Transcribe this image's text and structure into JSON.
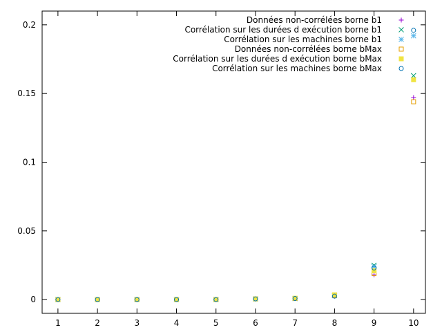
{
  "chart_data": {
    "type": "scatter",
    "title": "",
    "xlabel": "",
    "ylabel": "",
    "xlim": [
      0.6,
      10.3
    ],
    "ylim": [
      -0.01,
      0.21
    ],
    "grid": false,
    "legend_position": "top-right",
    "x_ticks": [
      {
        "value": 1,
        "label": "1"
      },
      {
        "value": 2,
        "label": "2"
      },
      {
        "value": 3,
        "label": "3"
      },
      {
        "value": 4,
        "label": "4"
      },
      {
        "value": 5,
        "label": "5"
      },
      {
        "value": 6,
        "label": "6"
      },
      {
        "value": 7,
        "label": "7"
      },
      {
        "value": 8,
        "label": "8"
      },
      {
        "value": 9,
        "label": "9"
      },
      {
        "value": 10,
        "label": "10"
      }
    ],
    "y_ticks": [
      {
        "value": 0,
        "label": "0"
      },
      {
        "value": 0.05,
        "label": "0.05"
      },
      {
        "value": 0.1,
        "label": "0.1"
      },
      {
        "value": 0.15,
        "label": "0.15"
      },
      {
        "value": 0.2,
        "label": "0.2"
      }
    ],
    "x": [
      1,
      2,
      3,
      4,
      5,
      6,
      7,
      8,
      9,
      10
    ],
    "series": [
      {
        "name": "Données non-corrélées borne b1",
        "marker": "plus",
        "color": "#9400d3",
        "values": [
          0,
          0,
          0,
          0,
          0,
          0.0005,
          0.0008,
          0.0025,
          0.018,
          0.147
        ]
      },
      {
        "name": "Corrélation sur les durées d exécution borne b1",
        "marker": "cross",
        "color": "#009e73",
        "values": [
          0,
          0,
          0,
          0,
          0,
          0.0005,
          0.0008,
          0.003,
          0.025,
          0.163
        ]
      },
      {
        "name": "Corrélation sur les machines borne b1",
        "marker": "star",
        "color": "#56b4e9",
        "values": [
          0,
          0,
          0,
          0,
          0,
          0.0005,
          0.0008,
          0.0028,
          0.024,
          0.192
        ]
      },
      {
        "name": "Données non-corrélées borne bMax",
        "marker": "open-square",
        "color": "#e69f00",
        "values": [
          0,
          0,
          0,
          0,
          0,
          0.0005,
          0.0008,
          0.003,
          0.019,
          0.144
        ]
      },
      {
        "name": "Corrélation sur les durées d exécution borne bMax",
        "marker": "filled-square",
        "color": "#f0e442",
        "values": [
          0,
          0,
          0,
          0,
          0,
          0.0005,
          0.001,
          0.0035,
          0.021,
          0.16
        ]
      },
      {
        "name": "Corrélation sur les machines borne bMax",
        "marker": "open-circle",
        "color": "#0072b2",
        "values": [
          0,
          0,
          0,
          0,
          0,
          0.0005,
          0.0008,
          0.0025,
          0.023,
          0.196
        ]
      }
    ]
  }
}
